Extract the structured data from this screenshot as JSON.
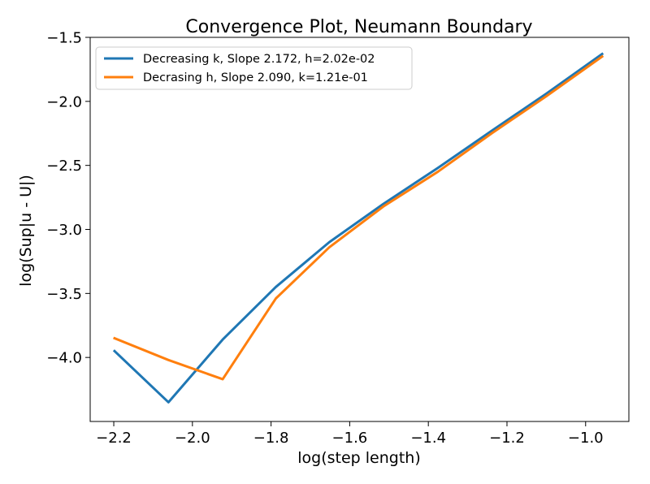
{
  "chart_data": {
    "type": "line",
    "title": "Convergence Plot, Neumann Boundary",
    "xlabel": "log(step length)",
    "ylabel": "log(Sup|u - U|)",
    "xlim": [
      -2.26,
      -0.89
    ],
    "ylim": [
      -4.5,
      -1.5
    ],
    "xticks": [
      -2.2,
      -2.0,
      -1.8,
      -1.6,
      -1.4,
      -1.2,
      -1.0
    ],
    "xtick_labels": [
      "−2.2",
      "−2.0",
      "−1.8",
      "−1.6",
      "−1.4",
      "−1.2",
      "−1.0"
    ],
    "yticks": [
      -4.0,
      -3.5,
      -3.0,
      -2.5,
      -2.0,
      -1.5
    ],
    "ytick_labels": [
      "−4.0",
      "−3.5",
      "−3.0",
      "−2.5",
      "−2.0",
      "−1.5"
    ],
    "legend_position": "top-left",
    "grid": false,
    "series": [
      {
        "name": "Decreasing k, Slope 2.172, h=2.02e-02",
        "color": "#1f77b4",
        "x": [
          -2.198,
          -2.061,
          -1.923,
          -1.788,
          -1.652,
          -1.514,
          -1.376,
          -1.239,
          -1.1,
          -0.958
        ],
        "y": [
          -3.95,
          -4.35,
          -3.86,
          -3.45,
          -3.1,
          -2.8,
          -2.52,
          -2.23,
          -1.94,
          -1.63
        ]
      },
      {
        "name": "Decrasing h, Slope 2.090, k=1.21e-01",
        "color": "#ff7f0e",
        "x": [
          -2.198,
          -2.061,
          -1.923,
          -1.788,
          -1.652,
          -1.514,
          -1.376,
          -1.239,
          -1.1,
          -0.958
        ],
        "y": [
          -3.85,
          -4.02,
          -4.17,
          -3.54,
          -3.14,
          -2.82,
          -2.55,
          -2.25,
          -1.96,
          -1.65
        ]
      }
    ]
  }
}
